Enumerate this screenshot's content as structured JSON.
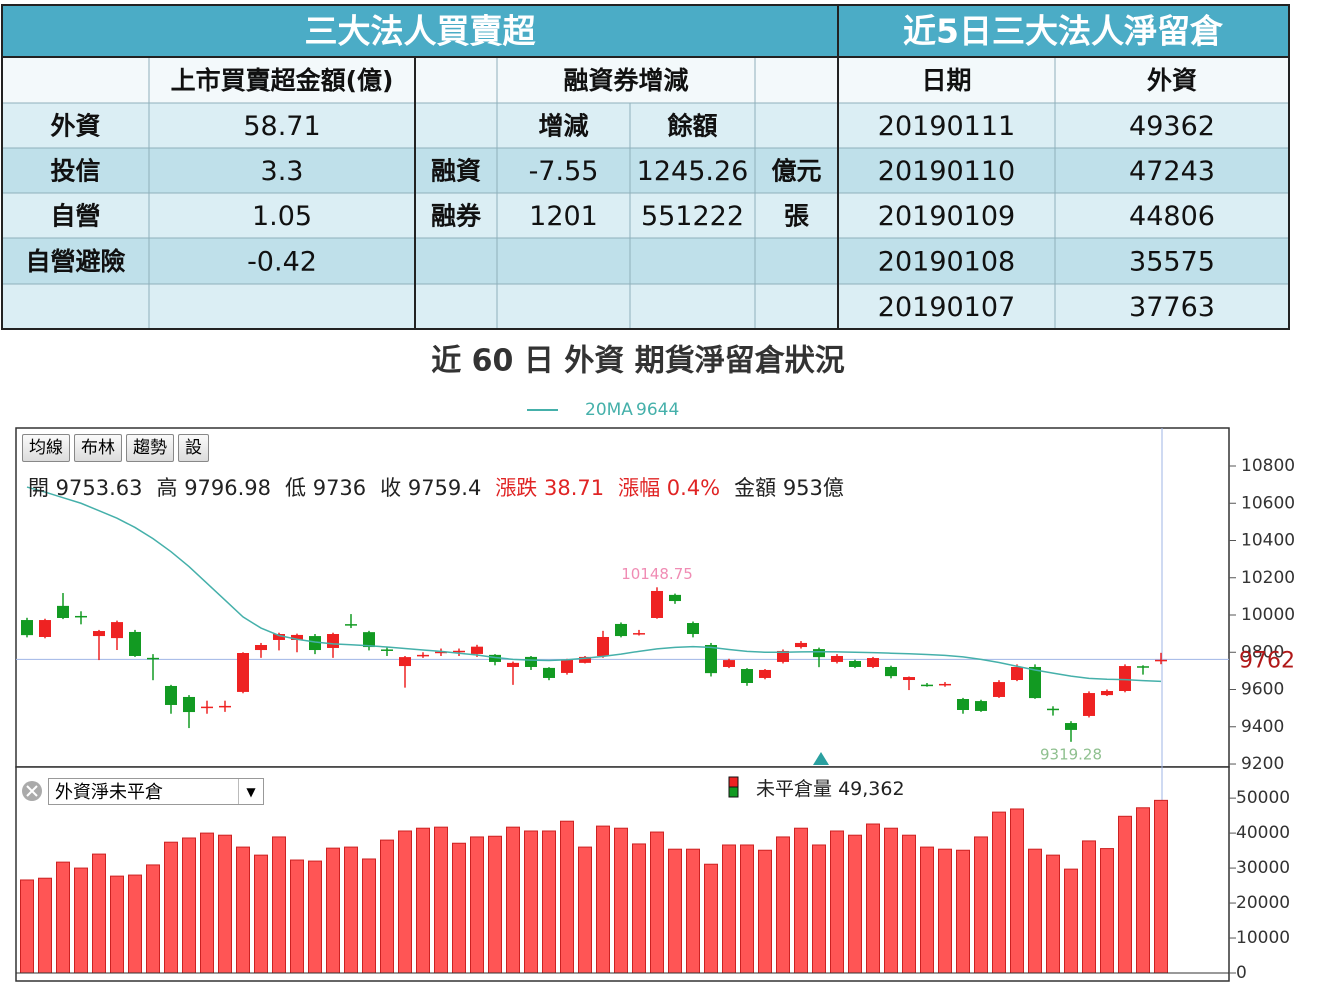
{
  "left_table": {
    "title": "三大法人買賣超",
    "header": {
      "amount": "上市買賣超金額(億)",
      "margin": "融資券增減"
    },
    "investors": [
      {
        "name": "外資",
        "amount": "58.71"
      },
      {
        "name": "投信",
        "amount": "3.3"
      },
      {
        "name": "自營",
        "amount": "1.05"
      },
      {
        "name": "自營避險",
        "amount": "-0.42"
      }
    ],
    "margin_header": [
      "增減",
      "餘額"
    ],
    "margin_rows": [
      {
        "name": "融資",
        "change": "-7.55",
        "balance": "1245.26",
        "unit": "億元"
      },
      {
        "name": "融券",
        "change": "1201",
        "balance": "551222",
        "unit": "張"
      }
    ]
  },
  "right_table": {
    "title": "近5日三大法人淨留倉",
    "columns": [
      "日期",
      "外資"
    ],
    "rows": [
      [
        "20190111",
        "49362"
      ],
      [
        "20190110",
        "47243"
      ],
      [
        "20190109",
        "44806"
      ],
      [
        "20190108",
        "35575"
      ],
      [
        "20190107",
        "37763"
      ]
    ]
  },
  "chart_data": [
    {
      "type": "candlestick",
      "title": "近 60 日 外資 期貨淨留倉狀況",
      "toolbar": [
        "均線",
        "布林",
        "趨勢",
        "設"
      ],
      "info": [
        {
          "text": "開 9753.63",
          "color": "#222222"
        },
        {
          "text": "高 9796.98",
          "color": "#222222"
        },
        {
          "text": "低 9736",
          "color": "#222222"
        },
        {
          "text": "收 9759.4",
          "color": "#222222"
        },
        {
          "text": "漲跌 38.71",
          "color": "#e02424"
        },
        {
          "text": "漲幅 0.4%",
          "color": "#e02424"
        },
        {
          "text": "金額 953億",
          "color": "#222222"
        }
      ],
      "up_color": "#ee2222",
      "down_color": "#129a22",
      "candles": {
        "open": [
          9973,
          9882,
          10049,
          9995,
          9887,
          9876,
          9909,
          9770,
          9619,
          9560,
          9505,
          9510,
          9587,
          9812,
          9866,
          9866,
          9887,
          9823,
          9951,
          9908,
          9815,
          9726,
          9785,
          9800,
          9805,
          9791,
          9786,
          9721,
          9775,
          9716,
          9689,
          9743,
          9780,
          9952,
          9903,
          9984,
          10108,
          9957,
          9839,
          9721,
          9710,
          9662,
          9748,
          9828,
          9817,
          9748,
          9753,
          9721,
          9721,
          9651,
          9626,
          9630,
          9549,
          9538,
          9560,
          9651,
          9721,
          9497,
          9420,
          9458,
          9570,
          9592,
          9725,
          9753.63
        ],
        "high": [
          9985,
          9980,
          10118,
          10020,
          9920,
          9970,
          9920,
          9790,
          9625,
          9570,
          9540,
          9540,
          9800,
          9850,
          9905,
          9900,
          9898,
          9905,
          10005,
          9915,
          9830,
          9780,
          9800,
          9820,
          9820,
          9840,
          9790,
          9750,
          9780,
          9720,
          9765,
          9780,
          9915,
          9960,
          9920,
          10148.75,
          10115,
          9965,
          9850,
          9765,
          9715,
          9710,
          9815,
          9860,
          9825,
          9790,
          9760,
          9775,
          9728,
          9670,
          9635,
          9640,
          9555,
          9545,
          9650,
          9735,
          9735,
          9510,
          9430,
          9590,
          9600,
          9735,
          9730,
          9796.98
        ],
        "low": [
          9880,
          9875,
          9978,
          9950,
          9758,
          9812,
          9775,
          9650,
          9470,
          9393,
          9470,
          9480,
          9580,
          9770,
          9810,
          9800,
          9790,
          9770,
          9930,
          9810,
          9780,
          9610,
          9770,
          9780,
          9780,
          9775,
          9730,
          9625,
          9705,
          9650,
          9680,
          9740,
          9770,
          9880,
          9890,
          9980,
          10060,
          9880,
          9670,
          9715,
          9620,
          9655,
          9740,
          9820,
          9720,
          9740,
          9715,
          9715,
          9660,
          9597,
          9615,
          9615,
          9470,
          9480,
          9555,
          9645,
          9550,
          9460,
          9319.28,
          9450,
          9565,
          9585,
          9680,
          9736
        ],
        "close": [
          9892,
          9973,
          9984,
          9989,
          9914,
          9962,
          9780,
          9768,
          9517,
          9479,
          9508,
          9512,
          9796,
          9839,
          9898,
          9893,
          9812,
          9898,
          9950,
          9828,
          9810,
          9774,
          9786,
          9803,
          9808,
          9830,
          9748,
          9743,
          9721,
          9662,
          9759,
          9775,
          9882,
          9887,
          9903,
          10129,
          10075,
          9898,
          9688,
          9758,
          9635,
          9705,
          9807,
          9850,
          9774,
          9780,
          9721,
          9769,
          9672,
          9667,
          9624,
          9630,
          9490,
          9485,
          9640,
          9721,
          9554,
          9495,
          9383,
          9581,
          9592,
          9726,
          9721,
          9759.4
        ]
      },
      "series": [
        {
          "name": "20MA",
          "color": "#45b0aa",
          "values": [
            10687,
            10660,
            10630,
            10600,
            10560,
            10520,
            10470,
            10410,
            10340,
            10260,
            10170,
            10080,
            9990,
            9930,
            9890,
            9870,
            9855,
            9845,
            9840,
            9835,
            9828,
            9820,
            9812,
            9805,
            9795,
            9785,
            9772,
            9762,
            9758,
            9756,
            9760,
            9768,
            9778,
            9790,
            9805,
            9818,
            9826,
            9830,
            9826,
            9815,
            9805,
            9800,
            9800,
            9802,
            9803,
            9802,
            9800,
            9798,
            9795,
            9792,
            9788,
            9783,
            9775,
            9762,
            9745,
            9725,
            9705,
            9688,
            9672,
            9660,
            9655,
            9653,
            9648,
            9644
          ]
        }
      ],
      "current_price": 9762,
      "ylim": [
        9184,
        11004
      ],
      "yticks": [
        9200,
        9400,
        9600,
        9800,
        10000,
        10200,
        10400,
        10600,
        10800
      ],
      "grid": false
    },
    {
      "type": "bar",
      "selector": "外資淨未平倉",
      "series": [
        {
          "name": "未平倉量",
          "color": "#ff5555",
          "legend_value_label": "49,362",
          "values": [
            26600,
            27100,
            31700,
            30000,
            34000,
            27700,
            28000,
            30900,
            37400,
            38600,
            40000,
            39400,
            36000,
            33700,
            38900,
            32300,
            32000,
            35700,
            36000,
            32600,
            38000,
            40600,
            41400,
            41700,
            37100,
            38900,
            39100,
            41700,
            40600,
            40600,
            43400,
            36000,
            42000,
            41400,
            36900,
            40300,
            35400,
            35400,
            31100,
            36600,
            36600,
            35100,
            38900,
            41400,
            36600,
            40600,
            39400,
            42600,
            41400,
            39400,
            36000,
            35400,
            35100,
            38900,
            46000,
            46900,
            35400,
            33700,
            29700,
            37763,
            35575,
            44806,
            47243,
            49362
          ]
        }
      ],
      "ylim": [
        0,
        58900
      ],
      "yticks": [
        0,
        10000,
        20000,
        30000,
        40000,
        50000
      ],
      "grid": false
    }
  ]
}
